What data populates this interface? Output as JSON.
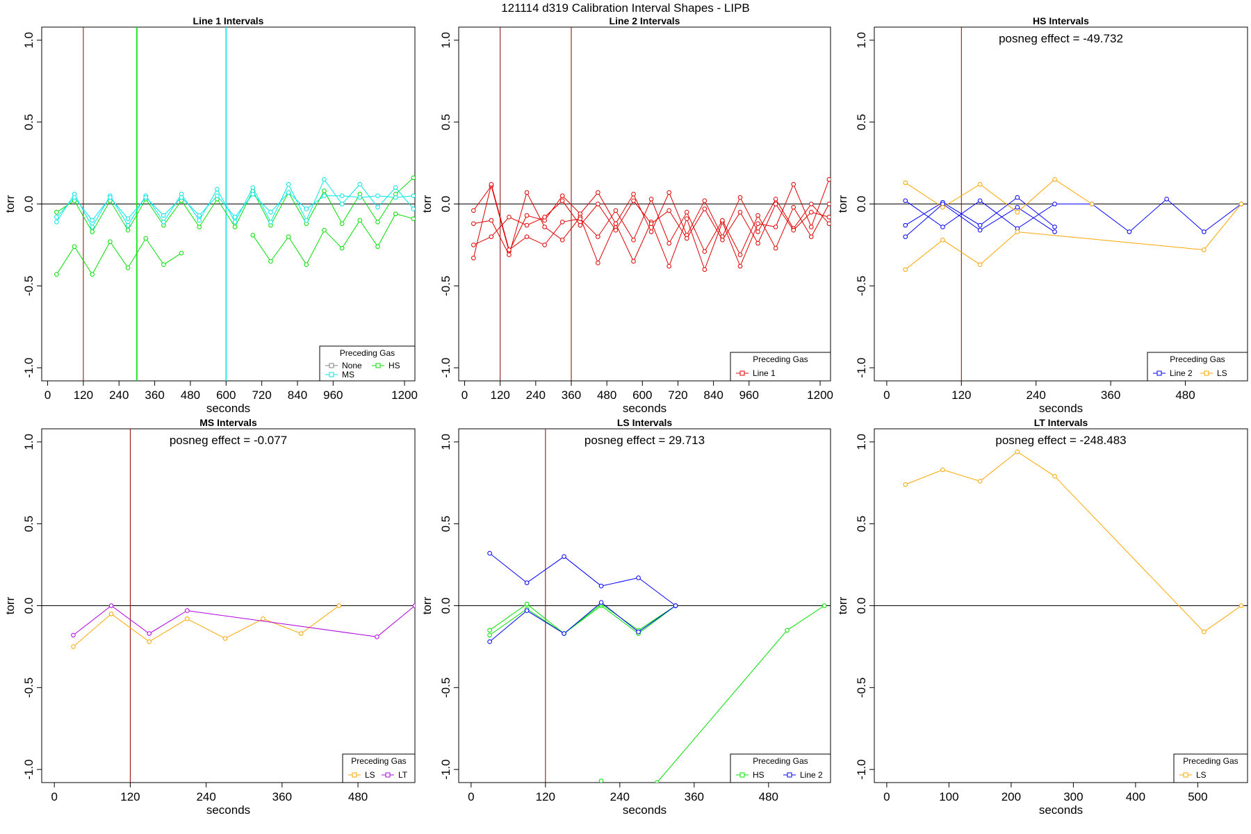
{
  "title": "121114   d319   Calibration Interval Shapes - LIPB",
  "colors": {
    "none": "#808080",
    "hs": "#00e000",
    "ms": "#00e5e5",
    "line1": "#e00000",
    "line2": "#0000ff",
    "ls": "#ffa500",
    "lt": "#b000e0",
    "vline": "#8b0000",
    "zero": "#000000"
  },
  "chart_data": [
    {
      "type": "line",
      "title": "Line 1 Intervals",
      "xlabel": "seconds",
      "ylabel": "torr",
      "xlim": [
        -20,
        1235
      ],
      "ylim": [
        -1.08,
        1.08
      ],
      "xticks": [
        0,
        120,
        240,
        360,
        480,
        600,
        720,
        840,
        960,
        1200
      ],
      "yticks": [
        -1.0,
        -0.5,
        0.0,
        0.5,
        1.0
      ],
      "ytick_labels": [
        "-1.0",
        "-0.5",
        "0.0",
        "0.5",
        "1.0"
      ],
      "annotation": "",
      "legend": {
        "title": "Preceding Gas",
        "position": "bottom-right",
        "items": [
          {
            "label": "None",
            "color": "none"
          },
          {
            "label": "HS",
            "color": "hs"
          },
          {
            "label": "MS",
            "color": "ms"
          }
        ]
      },
      "vlines": [
        {
          "x": 120,
          "color": "vline"
        },
        {
          "x": 300,
          "color": "hs"
        },
        {
          "x": 600,
          "color": "ms"
        }
      ],
      "series": [
        {
          "name": "HS",
          "color": "hs",
          "x": [
            30,
            90,
            150,
            210,
            270,
            330,
            390,
            450,
            510,
            570,
            630,
            690,
            750,
            810,
            870,
            930,
            990,
            1050,
            1110,
            1170,
            1230
          ],
          "y": [
            -0.05,
            0.02,
            -0.17,
            0.02,
            -0.16,
            0.03,
            -0.13,
            0.02,
            -0.14,
            0.03,
            -0.14,
            0.08,
            -0.13,
            0.07,
            -0.12,
            0.08,
            -0.12,
            0.06,
            -0.11,
            0.06,
            0.16
          ]
        },
        {
          "name": "HS",
          "color": "hs",
          "x": [
            30,
            90,
            150,
            210,
            270,
            330,
            390,
            450
          ],
          "y": [
            -0.43,
            -0.26,
            -0.43,
            -0.23,
            -0.39,
            -0.21,
            -0.37,
            -0.3
          ]
        },
        {
          "name": "HS",
          "color": "hs",
          "x": [
            690,
            750,
            810,
            870,
            930,
            990,
            1050,
            1110,
            1170,
            1230
          ],
          "y": [
            -0.19,
            -0.35,
            -0.2,
            -0.37,
            -0.16,
            -0.27,
            -0.1,
            -0.26,
            -0.06,
            -0.09
          ]
        },
        {
          "name": "MS",
          "color": "ms",
          "x": [
            30,
            90,
            150,
            210,
            270,
            330,
            390,
            450,
            510,
            570,
            630,
            690,
            750,
            810,
            870,
            930,
            990,
            1050,
            1110,
            1170,
            1230
          ],
          "y": [
            -0.11,
            0.06,
            -0.14,
            0.05,
            -0.13,
            0.05,
            -0.11,
            0.06,
            -0.1,
            0.09,
            -0.11,
            0.1,
            -0.11,
            0.12,
            -0.1,
            0.15,
            0.0,
            0.12,
            -0.02,
            0.1,
            -0.03
          ]
        },
        {
          "name": "MS",
          "color": "ms",
          "x": [
            30,
            90,
            150,
            210,
            270,
            330,
            390,
            450,
            510,
            570,
            630,
            690,
            750,
            810,
            870,
            930,
            990,
            1050,
            1110,
            1170,
            1230
          ],
          "y": [
            -0.08,
            0.04,
            -0.1,
            0.04,
            -0.09,
            0.04,
            -0.07,
            0.04,
            -0.07,
            0.05,
            -0.08,
            0.06,
            -0.05,
            0.07,
            -0.03,
            0.05,
            0.05,
            0.04,
            0.05,
            0.04,
            0.05
          ]
        }
      ]
    },
    {
      "type": "line",
      "title": "Line 2 Intervals",
      "xlabel": "seconds",
      "ylabel": "torr",
      "xlim": [
        -20,
        1235
      ],
      "ylim": [
        -1.08,
        1.08
      ],
      "xticks": [
        0,
        120,
        240,
        360,
        480,
        600,
        720,
        840,
        960,
        1200
      ],
      "yticks": [
        -1.0,
        -0.5,
        0.0,
        0.5,
        1.0
      ],
      "ytick_labels": [
        "-1.0",
        "-0.5",
        "0.0",
        "0.5",
        "1.0"
      ],
      "annotation": "",
      "legend": {
        "title": "Preceding Gas",
        "position": "bottom-right",
        "items": [
          {
            "label": "Line 1",
            "color": "line1"
          }
        ]
      },
      "vlines": [
        {
          "x": 120,
          "color": "vline"
        },
        {
          "x": 360,
          "color": "vline"
        }
      ],
      "series": [
        {
          "name": "Line 1",
          "color": "line1",
          "x": [
            30,
            90,
            150,
            210,
            270,
            330,
            390,
            450,
            510,
            570,
            630,
            690,
            750,
            810,
            870,
            930,
            990,
            1050,
            1110,
            1170,
            1230
          ],
          "y": [
            -0.04,
            0.11,
            -0.29,
            -0.07,
            -0.1,
            0.05,
            -0.06,
            0.07,
            -0.12,
            0.06,
            -0.17,
            0.07,
            -0.19,
            0.02,
            -0.2,
            0.04,
            -0.17,
            0.03,
            -0.15,
            0.0,
            -0.12
          ]
        },
        {
          "name": "Line 1",
          "color": "line1",
          "x": [
            30,
            90,
            150,
            210,
            270,
            330,
            390,
            450,
            510,
            570,
            630,
            690,
            750,
            810,
            870,
            930,
            990,
            1050,
            1110,
            1170,
            1230
          ],
          "y": [
            -0.12,
            -0.1,
            -0.31,
            0.07,
            -0.14,
            -0.22,
            -0.08,
            -0.36,
            -0.12,
            -0.35,
            -0.11,
            -0.38,
            -0.09,
            -0.4,
            -0.11,
            -0.38,
            -0.12,
            -0.14,
            0.12,
            -0.14,
            0.15
          ]
        },
        {
          "name": "Line 1",
          "color": "line1",
          "x": [
            30,
            90,
            150,
            210,
            270,
            330,
            390,
            450,
            510,
            570,
            630,
            690,
            750,
            810,
            870,
            930,
            990,
            1050,
            1110,
            1170,
            1230
          ],
          "y": [
            -0.25,
            -0.2,
            -0.08,
            -0.13,
            -0.08,
            0.02,
            -0.13,
            0.0,
            -0.16,
            0.02,
            -0.12,
            -0.04,
            -0.21,
            -0.03,
            -0.22,
            -0.05,
            -0.24,
            0.0,
            -0.16,
            -0.05,
            -0.08
          ]
        },
        {
          "name": "Line 1",
          "color": "line1",
          "x": [
            30,
            90,
            150,
            210,
            270,
            330,
            390,
            450,
            510,
            570,
            630,
            690,
            750,
            810,
            870,
            930,
            990,
            1050,
            1110,
            1170,
            1230
          ],
          "y": [
            -0.33,
            0.12,
            -0.28,
            -0.2,
            -0.25,
            -0.11,
            -0.09,
            -0.2,
            -0.04,
            -0.22,
            0.03,
            -0.24,
            -0.05,
            -0.29,
            -0.1,
            -0.31,
            -0.07,
            -0.27,
            -0.02,
            -0.2,
            0.0
          ]
        }
      ]
    },
    {
      "type": "line",
      "title": "HS Intervals",
      "xlabel": "seconds",
      "ylabel": "torr",
      "xlim": [
        -20,
        580
      ],
      "ylim": [
        -1.08,
        1.08
      ],
      "xticks": [
        0,
        120,
        240,
        360,
        480
      ],
      "yticks": [
        -1.0,
        -0.5,
        0.0,
        0.5,
        1.0
      ],
      "ytick_labels": [
        "-1.0",
        "-0.5",
        "0.0",
        "0.5",
        "1.0"
      ],
      "annotation": "posneg effect = -49.732",
      "legend": {
        "title": "Preceding Gas",
        "position": "bottom-right",
        "items": [
          {
            "label": "Line 2",
            "color": "line2"
          },
          {
            "label": "LS",
            "color": "ls"
          }
        ]
      },
      "vlines": [
        {
          "x": 120,
          "color": "vline"
        }
      ],
      "series": [
        {
          "name": "Line 2",
          "color": "line2",
          "x": [
            30,
            90,
            150,
            210,
            270,
            330,
            390,
            450,
            510,
            570
          ],
          "y": [
            0.02,
            -0.14,
            0.02,
            -0.15,
            0.0,
            0.0,
            -0.17,
            0.03,
            -0.17,
            0.0
          ]
        },
        {
          "name": "Line 2",
          "color": "line2",
          "x": [
            30,
            90,
            150,
            210,
            270
          ],
          "y": [
            -0.13,
            0.01,
            -0.13,
            0.04,
            -0.14
          ]
        },
        {
          "name": "Line 2",
          "color": "line2",
          "x": [
            30,
            90,
            150,
            210,
            270
          ],
          "y": [
            -0.2,
            0.0,
            -0.16,
            -0.02,
            -0.17
          ]
        },
        {
          "name": "LS",
          "color": "ls",
          "x": [
            30,
            90,
            150,
            210,
            270,
            330
          ],
          "y": [
            0.13,
            -0.02,
            0.12,
            -0.05,
            0.15,
            0.0
          ]
        },
        {
          "name": "LS",
          "color": "ls",
          "x": [
            30,
            90,
            150,
            210,
            510,
            570
          ],
          "y": [
            -0.4,
            -0.22,
            -0.37,
            -0.17,
            -0.28,
            0.0
          ]
        }
      ]
    },
    {
      "type": "line",
      "title": "MS Intervals",
      "xlabel": "seconds",
      "ylabel": "torr",
      "xlim": [
        -20,
        570
      ],
      "ylim": [
        -1.08,
        1.08
      ],
      "xticks": [
        0,
        120,
        240,
        360,
        480
      ],
      "yticks": [
        -1.0,
        -0.5,
        0.0,
        0.5,
        1.0
      ],
      "ytick_labels": [
        "-1.0",
        "-0.5",
        "0.0",
        "0.5",
        "1.0"
      ],
      "annotation": "posneg effect = -0.077",
      "legend": {
        "title": "Preceding Gas",
        "position": "bottom-right",
        "items": [
          {
            "label": "LS",
            "color": "ls"
          },
          {
            "label": "LT",
            "color": "lt"
          }
        ]
      },
      "vlines": [
        {
          "x": 120,
          "color": "vline"
        }
      ],
      "series": [
        {
          "name": "LS",
          "color": "ls",
          "x": [
            30,
            90,
            150,
            210,
            270,
            330,
            390,
            450
          ],
          "y": [
            -0.25,
            -0.05,
            -0.22,
            -0.08,
            -0.2,
            -0.08,
            -0.17,
            0.0
          ]
        },
        {
          "name": "LT",
          "color": "lt",
          "x": [
            30,
            90,
            150,
            210,
            510,
            570
          ],
          "y": [
            -0.18,
            0.0,
            -0.17,
            -0.03,
            -0.19,
            0.0
          ]
        }
      ]
    },
    {
      "type": "line",
      "title": "LS Intervals",
      "xlabel": "seconds",
      "ylabel": "torr",
      "xlim": [
        -20,
        580
      ],
      "ylim": [
        -1.08,
        1.08
      ],
      "xticks": [
        0,
        120,
        240,
        360,
        480
      ],
      "yticks": [
        -1.0,
        -0.5,
        0.0,
        0.5,
        1.0
      ],
      "ytick_labels": [
        "-1.0",
        "-0.5",
        "0.0",
        "0.5",
        "1.0"
      ],
      "annotation": "posneg effect = 29.713",
      "legend": {
        "title": "Preceding Gas",
        "position": "bottom-right",
        "items": [
          {
            "label": "HS",
            "color": "hs"
          },
          {
            "label": "Line 2",
            "color": "line2"
          }
        ]
      },
      "vlines": [
        {
          "x": 120,
          "color": "vline"
        }
      ],
      "series": [
        {
          "name": "HS",
          "color": "hs",
          "x": [
            30,
            90,
            150,
            210,
            270,
            330
          ],
          "y": [
            -0.15,
            0.01,
            -0.17,
            0.0,
            -0.17,
            0.0
          ]
        },
        {
          "name": "HS",
          "color": "hs",
          "x": [
            30,
            90,
            150,
            210,
            270,
            330
          ],
          "y": [
            -0.18,
            -0.02,
            -0.17,
            0.01,
            -0.15,
            0.0
          ]
        },
        {
          "name": "HS",
          "color": "hs",
          "x": [
            300,
            510,
            570
          ],
          "y": [
            -1.08,
            -0.15,
            0.0
          ]
        },
        {
          "name": "HS",
          "color": "hs",
          "x": [
            210
          ],
          "y": [
            -1.07
          ]
        },
        {
          "name": "Line 2",
          "color": "line2",
          "x": [
            30,
            90,
            150,
            210,
            270,
            330
          ],
          "y": [
            0.32,
            0.14,
            0.3,
            0.12,
            0.17,
            0.0
          ]
        },
        {
          "name": "Line 2",
          "color": "line2",
          "x": [
            30,
            90,
            150,
            210,
            270,
            330
          ],
          "y": [
            -0.22,
            -0.03,
            -0.17,
            0.02,
            -0.16,
            0.0
          ]
        }
      ]
    },
    {
      "type": "line",
      "title": "LT Intervals",
      "xlabel": "seconds",
      "ylabel": "torr",
      "xlim": [
        -20,
        580
      ],
      "ylim": [
        -1.08,
        1.08
      ],
      "xticks": [
        0,
        100,
        200,
        300,
        400,
        500
      ],
      "yticks": [
        -1.0,
        -0.5,
        0.0,
        0.5,
        1.0
      ],
      "ytick_labels": [
        "-1.0",
        "-0.5",
        "0.0",
        "0.5",
        "1.0"
      ],
      "annotation": "posneg effect = -248.483",
      "legend": {
        "title": "Preceding Gas",
        "position": "bottom-right",
        "items": [
          {
            "label": "LS",
            "color": "ls"
          }
        ]
      },
      "vlines": [],
      "series": [
        {
          "name": "LS",
          "color": "ls",
          "x": [
            30,
            90,
            150,
            210,
            270,
            510,
            570
          ],
          "y": [
            0.74,
            0.83,
            0.76,
            0.94,
            0.79,
            -0.16,
            0.0
          ]
        }
      ]
    }
  ]
}
